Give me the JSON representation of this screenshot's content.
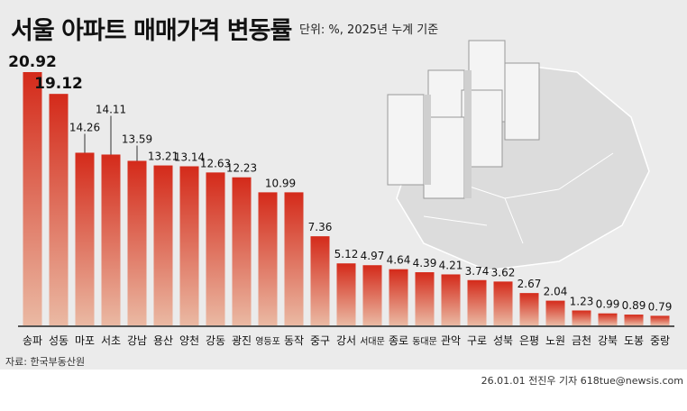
{
  "title": "서울 아파트 매매가격 변동률",
  "unit": "단위: %, 2025년 누계 기준",
  "source": "자료: 한국부동산원",
  "credit": "26.01.01 전진우 기자 618tue@newsis.com",
  "colors": {
    "bar_top": "#d42a1a",
    "bar_bottom": "#eab9a3",
    "background": "#ebebeb"
  },
  "chart_data": {
    "type": "bar",
    "title": "서울 아파트 매매가격 변동률",
    "categories": [
      "송파",
      "성동",
      "마포",
      "서초",
      "강남",
      "용산",
      "양천",
      "강동",
      "광진",
      "영등포",
      "동작",
      "중구",
      "강서",
      "서대문",
      "종로",
      "동대문",
      "관악",
      "구로",
      "성북",
      "은평",
      "노원",
      "금천",
      "강북",
      "도봉",
      "중랑"
    ],
    "values": [
      20.92,
      19.12,
      14.26,
      14.11,
      13.59,
      13.21,
      13.14,
      12.63,
      12.23,
      10.99,
      10.99,
      7.36,
      5.12,
      4.97,
      4.64,
      4.39,
      4.21,
      3.74,
      3.62,
      2.67,
      2.04,
      1.23,
      0.99,
      0.89,
      0.79
    ],
    "value_labels": [
      "20.92",
      "19.12",
      "14.26",
      "14.11",
      "13.59",
      "13.21",
      "13.14",
      "12.63",
      "12.23",
      "10.99",
      "",
      "7.36",
      "5.12",
      "4.97",
      "4.64",
      "4.39",
      "4.21",
      "3.74",
      "3.62",
      "2.67",
      "2.04",
      "1.23",
      "0.99",
      "0.89",
      "0.79"
    ],
    "ylim": [
      0,
      21
    ],
    "grid": false
  }
}
